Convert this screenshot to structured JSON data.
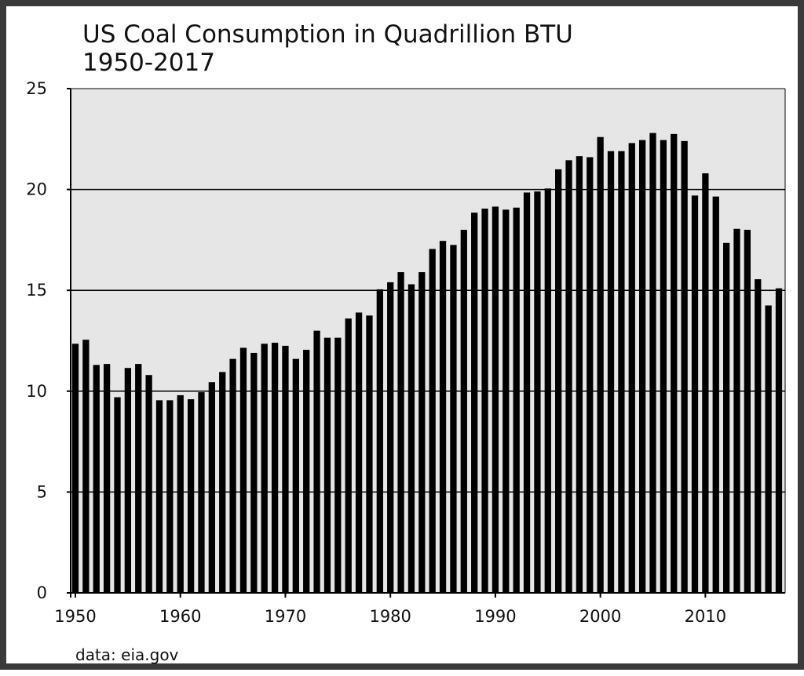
{
  "chart_data": {
    "type": "bar",
    "title": "US Coal Consumption in Quadrillion BTU",
    "subtitle": "1950-2017",
    "source": "data: eia.gov",
    "xlabel": "",
    "ylabel": "",
    "ylim": [
      0,
      25
    ],
    "xlim": [
      1950,
      2017
    ],
    "grid": true,
    "legend": "none",
    "y_ticks": [
      "0",
      "5",
      "10",
      "15",
      "20",
      "25"
    ],
    "x_ticks": [
      "1950",
      "1960",
      "1970",
      "1980",
      "1990",
      "2000",
      "2010"
    ],
    "colors": {
      "bar": "#000000",
      "plot_background": "#e6e6e6",
      "gridline": "#000000",
      "frame_border": "#3a3a3a"
    },
    "categories": [
      1950,
      1951,
      1952,
      1953,
      1954,
      1955,
      1956,
      1957,
      1958,
      1959,
      1960,
      1961,
      1962,
      1963,
      1964,
      1965,
      1966,
      1967,
      1968,
      1969,
      1970,
      1971,
      1972,
      1973,
      1974,
      1975,
      1976,
      1977,
      1978,
      1979,
      1980,
      1981,
      1982,
      1983,
      1984,
      1985,
      1986,
      1987,
      1988,
      1989,
      1990,
      1991,
      1992,
      1993,
      1994,
      1995,
      1996,
      1997,
      1998,
      1999,
      2000,
      2001,
      2002,
      2003,
      2004,
      2005,
      2006,
      2007,
      2008,
      2009,
      2010,
      2011,
      2012,
      2013,
      2014,
      2015,
      2016,
      2017
    ],
    "values": [
      12.35,
      12.55,
      11.3,
      11.35,
      9.7,
      11.15,
      11.35,
      10.8,
      9.55,
      9.55,
      9.8,
      9.6,
      9.95,
      10.45,
      10.95,
      11.6,
      12.15,
      11.9,
      12.35,
      12.4,
      12.25,
      11.6,
      12.05,
      13.0,
      12.65,
      12.65,
      13.6,
      13.9,
      13.75,
      15.05,
      15.4,
      15.9,
      15.3,
      15.9,
      17.05,
      17.45,
      17.25,
      18.0,
      18.85,
      19.05,
      19.15,
      19.0,
      19.1,
      19.85,
      19.9,
      20.05,
      21.0,
      21.45,
      21.65,
      21.6,
      22.6,
      21.9,
      21.9,
      22.3,
      22.45,
      22.8,
      22.45,
      22.75,
      22.4,
      19.7,
      20.8,
      19.65,
      17.35,
      18.05,
      18.0,
      15.55,
      14.25,
      15.1
    ]
  }
}
